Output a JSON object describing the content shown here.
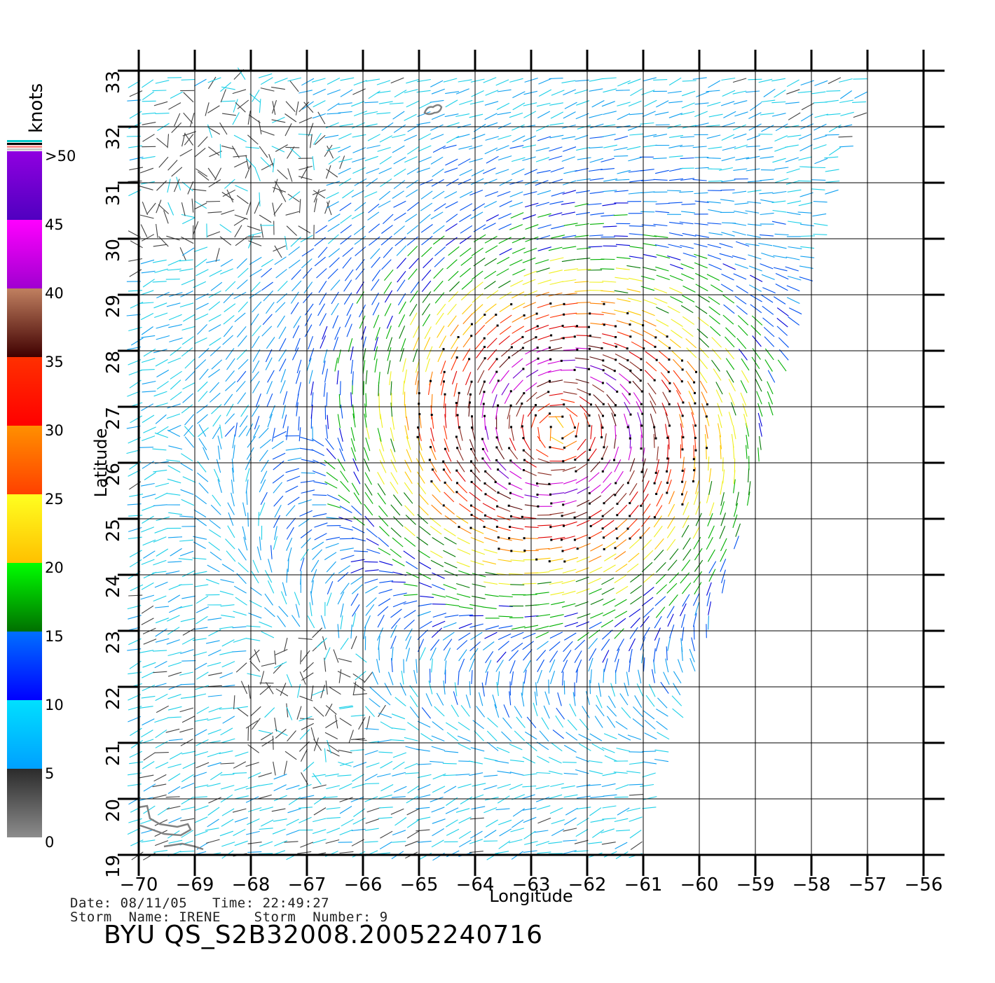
{
  "colorbar": {
    "title": "knots",
    "labels": [
      ">50",
      "45",
      "40",
      "35",
      "30",
      "25",
      "20",
      "15",
      "10",
      "5",
      "0"
    ],
    "label_values": [
      50,
      45,
      40,
      35,
      30,
      25,
      20,
      15,
      10,
      5,
      0
    ],
    "bands": [
      {
        "from": 0,
        "to": 5,
        "top": "#2b2b2b",
        "bottom": "#8c8c8c"
      },
      {
        "from": 5,
        "to": 10,
        "top": "#00e0ff",
        "bottom": "#00a0ff"
      },
      {
        "from": 10,
        "to": 15,
        "top": "#0070ff",
        "bottom": "#0000ff"
      },
      {
        "from": 15,
        "to": 20,
        "top": "#00ff00",
        "bottom": "#007000"
      },
      {
        "from": 20,
        "to": 25,
        "top": "#ffff20",
        "bottom": "#ffc000"
      },
      {
        "from": 25,
        "to": 30,
        "top": "#ff9000",
        "bottom": "#ff4000"
      },
      {
        "from": 30,
        "to": 35,
        "top": "#ff3000",
        "bottom": "#ff0000"
      },
      {
        "from": 35,
        "to": 40,
        "top": "#c08060",
        "bottom": "#400000"
      },
      {
        "from": 40,
        "to": 45,
        "top": "#ff00ff",
        "bottom": "#a000d0"
      },
      {
        "from": 45,
        "to": 50,
        "top": "#9000e0",
        "bottom": "#5000c0"
      }
    ],
    "cap_stripes": [
      "#00c8c8",
      "#000000",
      "#ff9090",
      "#c8c8c8"
    ]
  },
  "map": {
    "xlabel": "Longitude",
    "ylabel": "Latitude",
    "lon_range": [
      -70,
      -56
    ],
    "lat_range": [
      19,
      33
    ],
    "x_ticks": [
      "−70",
      "−69",
      "−68",
      "−67",
      "−66",
      "−65",
      "−64",
      "−63",
      "−62",
      "−61",
      "−60",
      "−59",
      "−58",
      "−57",
      "−56"
    ],
    "y_ticks": [
      "19",
      "20",
      "21",
      "22",
      "23",
      "24",
      "25",
      "26",
      "27",
      "28",
      "29",
      "30",
      "31",
      "32",
      "33"
    ],
    "grid": true,
    "swath_edge_lon_bottom": -61.0,
    "swath_edge_lon_top": -56.8,
    "storm_center": {
      "lon": -62.5,
      "lat": 26.6
    },
    "islands": [
      {
        "name_hidden": "bermuda",
        "lon": -64.75,
        "lat": 32.3
      }
    ],
    "coast_lon_lat": [
      -70.0,
      19.6
    ]
  },
  "chart_data": {
    "type": "map",
    "variable": "wind speed (knots)",
    "xlabel": "Longitude",
    "ylabel": "Latitude",
    "xlim": [
      -70,
      -56
    ],
    "ylim": [
      19,
      33
    ],
    "grid": true,
    "colorbar_range": [
      0,
      50
    ],
    "storm_center": [
      -62.5,
      26.6
    ],
    "max_wind_knots": 50
  },
  "footer": {
    "date_line": "Date: 08/11/05   Time: 22:49:27",
    "storm_line": "Storm  Name: IRENE    Storm  Number: 9",
    "id_line": "BYU  QS_S2B32008.20052240716"
  },
  "colors": {
    "grid": "#000000",
    "coast": "#808080"
  }
}
